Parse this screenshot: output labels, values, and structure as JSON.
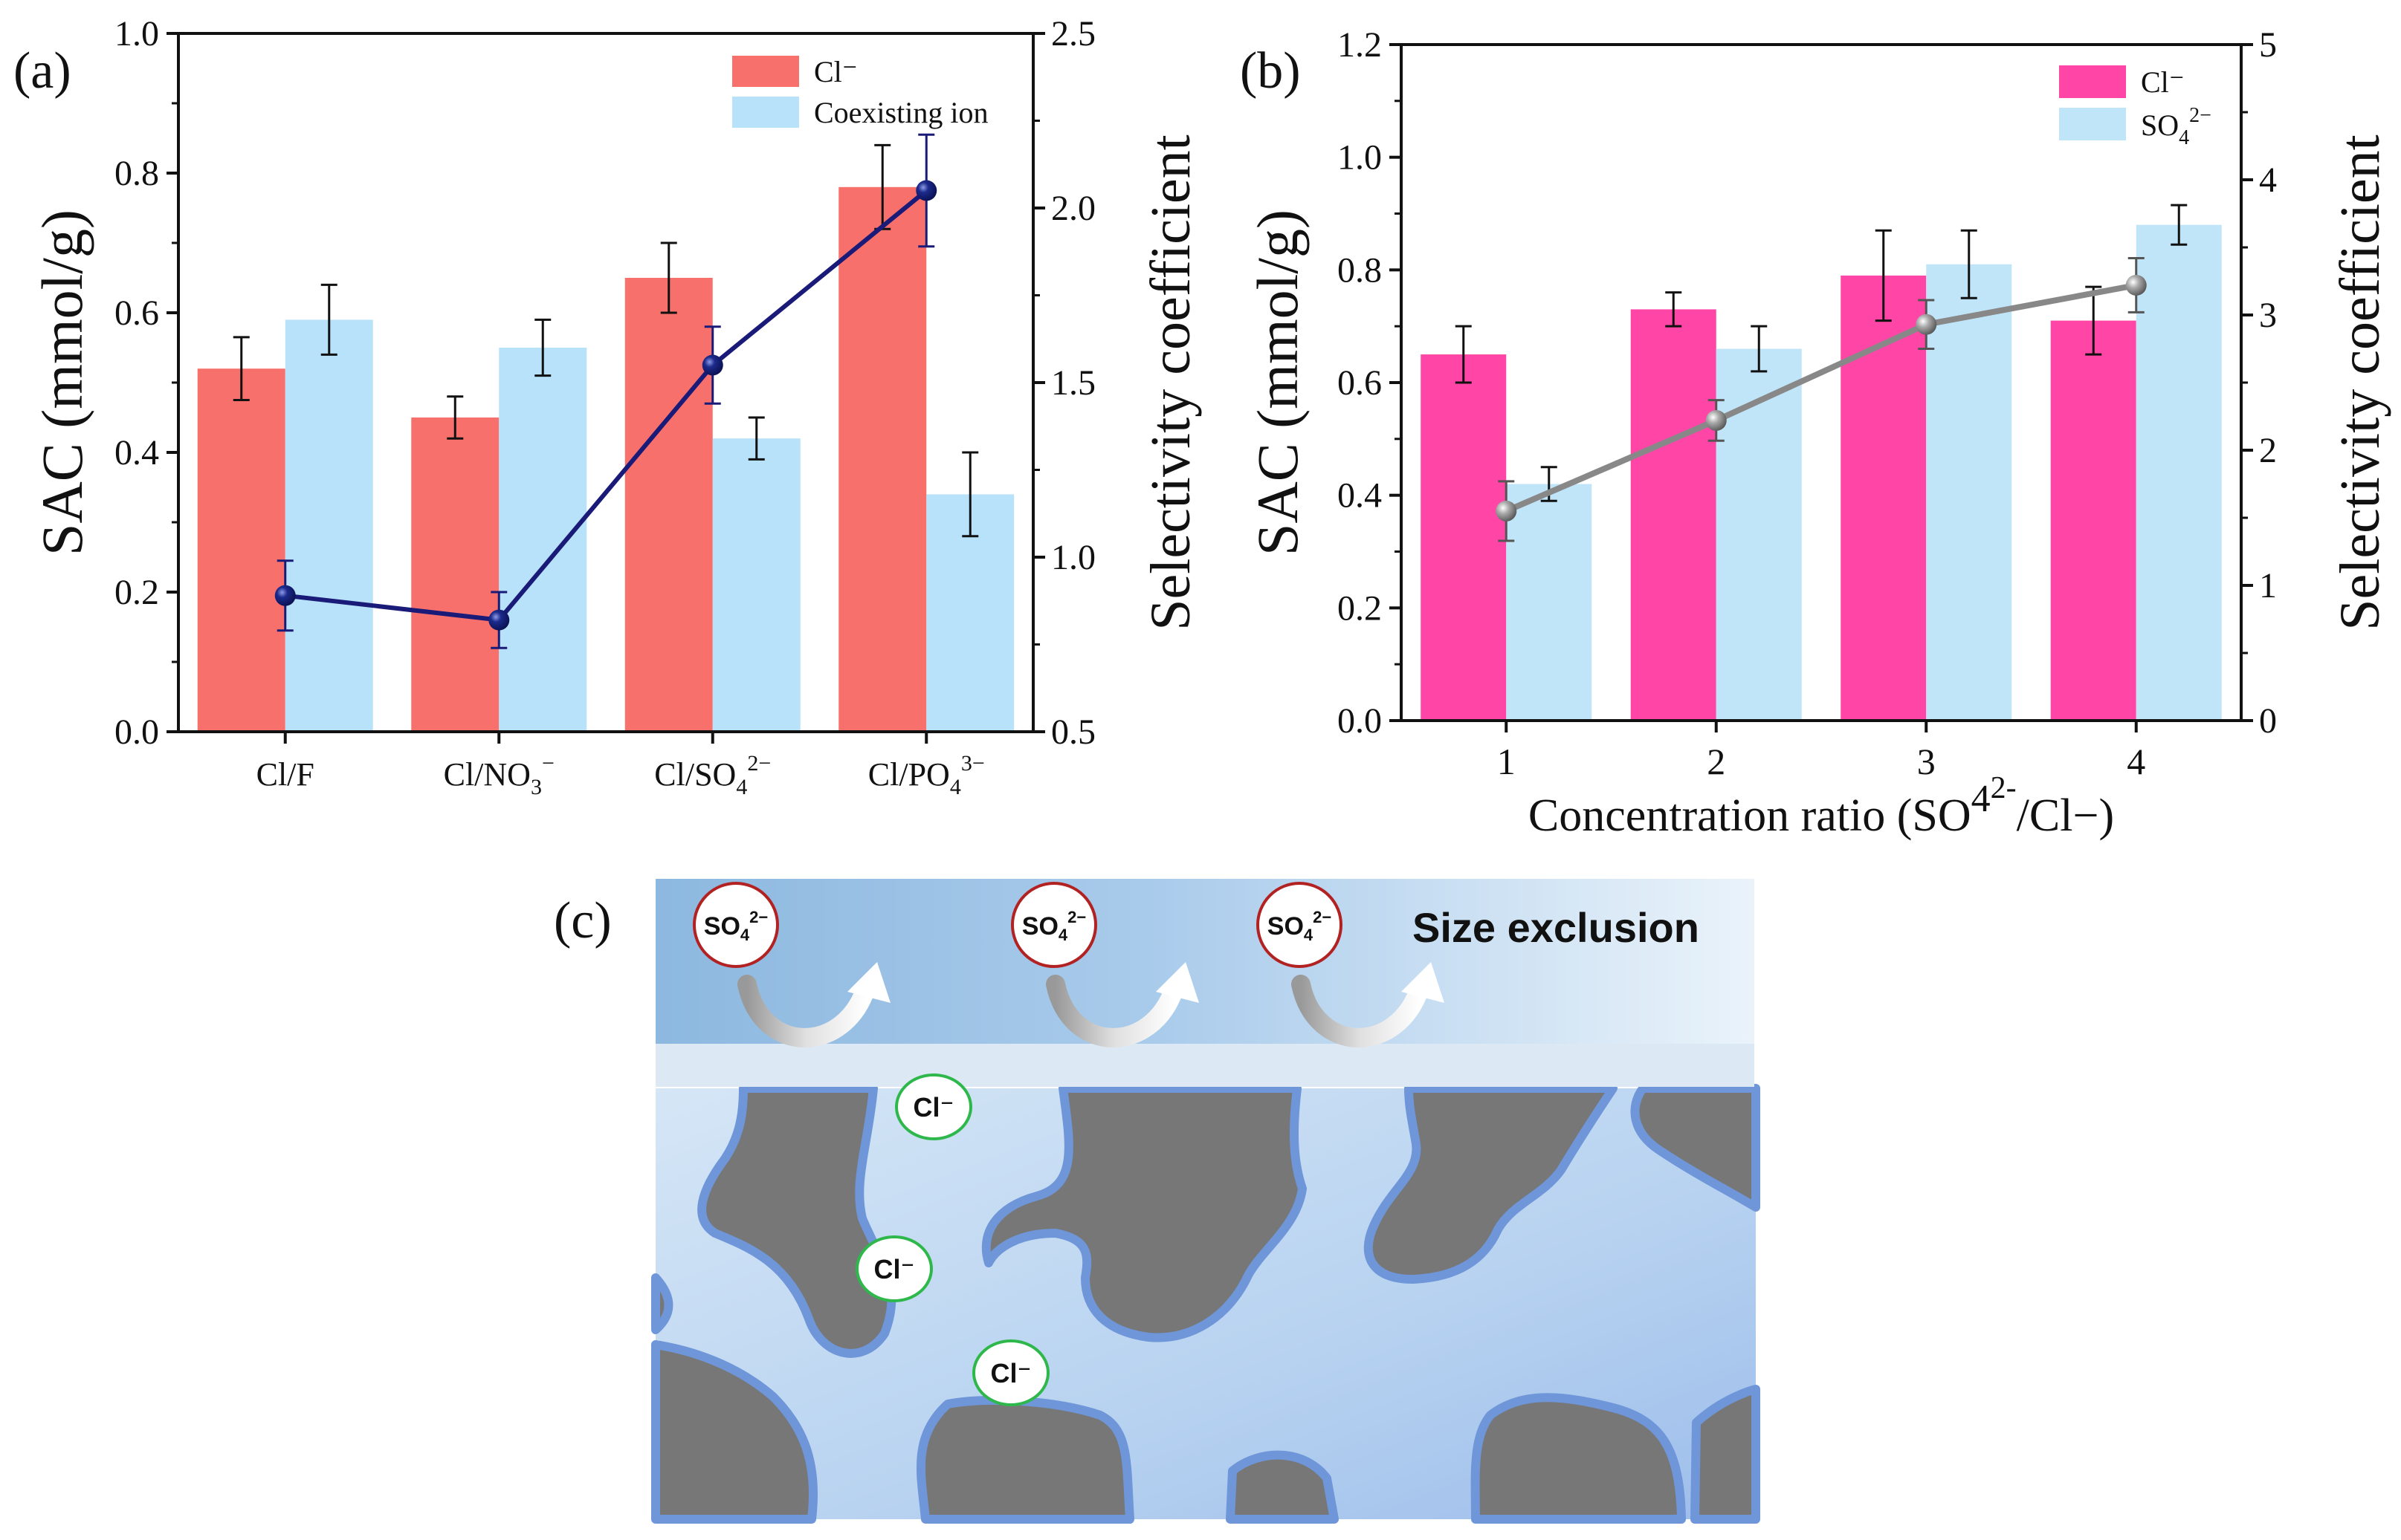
{
  "panels": {
    "a_label": "(a)",
    "b_label": "(b)",
    "c_label": "(c)"
  },
  "chart_data": [
    {
      "type": "bar",
      "title": "",
      "categories": [
        "Cl/F",
        "Cl/NO3−",
        "Cl/SO42−",
        "Cl/PO43−"
      ],
      "category_labels": [
        {
          "main": "Cl/F",
          "sub": "",
          "sup": ""
        },
        {
          "main": "Cl/NO",
          "sub": "3",
          "sup": "−"
        },
        {
          "main": "Cl/SO",
          "sub": "4",
          "sup": "2−"
        },
        {
          "main": "Cl/PO",
          "sub": "4",
          "sup": "3−"
        }
      ],
      "ylabel": "SAC (mmol/g)",
      "ylim": [
        0,
        1.0
      ],
      "yticks": [
        "0.0",
        "0.2",
        "0.4",
        "0.6",
        "0.8",
        "1.0"
      ],
      "y2label": "Selectivity coefficient",
      "y2lim": [
        0.5,
        2.5
      ],
      "y2ticks": [
        "0.5",
        "1.0",
        "1.5",
        "2.0",
        "2.5"
      ],
      "series": [
        {
          "name": "Cl−",
          "legend": "Cl⁻",
          "color": "#F7706B",
          "values": [
            0.52,
            0.45,
            0.65,
            0.78
          ],
          "errors": [
            0.045,
            0.03,
            0.05,
            0.06
          ]
        },
        {
          "name": "Coexisting ion",
          "legend": "Coexisting ion",
          "color": "#B8E2FA",
          "values": [
            0.59,
            0.55,
            0.42,
            0.34
          ],
          "errors": [
            0.05,
            0.04,
            0.03,
            0.06
          ]
        }
      ],
      "line": {
        "name": "Selectivity coefficient",
        "color": "#1A1A78",
        "values": [
          0.89,
          0.82,
          1.55,
          2.05
        ],
        "errors": [
          0.1,
          0.08,
          0.11,
          0.16
        ]
      }
    },
    {
      "type": "bar",
      "title": "",
      "categories": [
        "1",
        "2",
        "3",
        "4"
      ],
      "xlabel_main": "Concentration ratio (SO",
      "xlabel_sub": "4",
      "xlabel_sup": "2-",
      "xlabel_end": "/Cl−)",
      "ylabel": "SAC (mmol/g)",
      "ylim": [
        0,
        1.2
      ],
      "yticks": [
        "0.0",
        "0.2",
        "0.4",
        "0.6",
        "0.8",
        "1.0",
        "1.2"
      ],
      "y2label": "Selectivity coefficient",
      "y2lim": [
        0,
        5
      ],
      "y2ticks": [
        "0",
        "1",
        "2",
        "3",
        "4",
        "5"
      ],
      "series": [
        {
          "name": "Cl−",
          "legend": "Cl⁻",
          "color": "#FF45A5",
          "values": [
            0.65,
            0.73,
            0.79,
            0.71
          ],
          "errors": [
            0.05,
            0.03,
            0.08,
            0.06
          ]
        },
        {
          "name": "SO42−",
          "legend_main": "SO",
          "legend_sub": "4",
          "legend_sup": "2−",
          "color": "#C1E5F8",
          "values": [
            0.42,
            0.66,
            0.81,
            0.88
          ],
          "errors": [
            0.03,
            0.04,
            0.06,
            0.035
          ]
        }
      ],
      "line": {
        "name": "Selectivity coefficient",
        "color": "#888888",
        "values": [
          1.55,
          2.22,
          2.93,
          3.22
        ],
        "errors": [
          0.22,
          0.15,
          0.18,
          0.2
        ]
      }
    }
  ],
  "diagram": {
    "sulfate_main": "SO",
    "sulfate_sub": "4",
    "sulfate_sup": "2−",
    "chloride_label": "Cl⁻",
    "size_exclusion": "Size exclusion",
    "colors": {
      "size_exclusion": "#1DB954",
      "sulfate_ring": "#B22222",
      "chloride_ring": "#2EB84B"
    }
  }
}
